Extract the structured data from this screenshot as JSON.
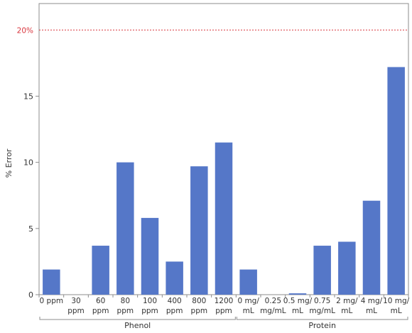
{
  "chart_data": {
    "type": "bar",
    "ylabel": "% Error",
    "ylim": [
      0,
      22
    ],
    "yticks": [
      0,
      5,
      10,
      15
    ],
    "grid": false,
    "bar_color": "#5577c8",
    "reference_line": {
      "value": 20,
      "label": "20%",
      "color": "#d9363e"
    },
    "groups": [
      {
        "name": "Phenol",
        "categories": [
          [
            "0 ppm"
          ],
          [
            "30",
            "ppm"
          ],
          [
            "60",
            "ppm"
          ],
          [
            "80",
            "ppm"
          ],
          [
            "100",
            "ppm"
          ],
          [
            "400",
            "ppm"
          ],
          [
            "800",
            "ppm"
          ],
          [
            "1200",
            "ppm"
          ]
        ],
        "values": [
          1.9,
          0,
          3.7,
          10.0,
          5.8,
          2.5,
          9.7,
          11.5
        ]
      },
      {
        "name": "Protein",
        "categories": [
          [
            "0 mg/",
            "mL"
          ],
          [
            "0.25",
            "mg/mL"
          ],
          [
            "0.5 mg/",
            "mL"
          ],
          [
            "0.75",
            "mg/mL"
          ],
          [
            "2 mg/",
            "mL"
          ],
          [
            "4 mg/",
            "mL"
          ],
          [
            "10 mg/",
            "mL"
          ]
        ],
        "values": [
          1.9,
          0,
          0.1,
          3.7,
          4.0,
          7.1,
          17.2
        ]
      }
    ]
  }
}
